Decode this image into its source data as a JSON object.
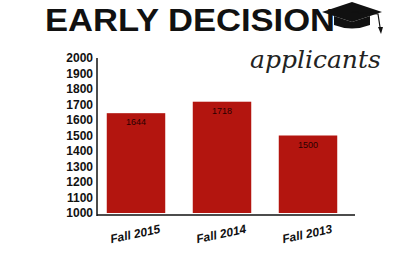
{
  "chart_data": {
    "type": "bar",
    "title": "EARLY DECISION",
    "subtitle": "applicants",
    "categories": [
      "Fall 2015",
      "Fall 2014",
      "Fall 2013"
    ],
    "values": [
      1644,
      1718,
      1500
    ],
    "color": "#b3150f",
    "ylim": [
      1000,
      2000
    ],
    "yticks": [
      1000,
      1100,
      1200,
      1300,
      1400,
      1500,
      1600,
      1700,
      1800,
      1900,
      2000
    ],
    "grid": false,
    "data_labels": true
  }
}
